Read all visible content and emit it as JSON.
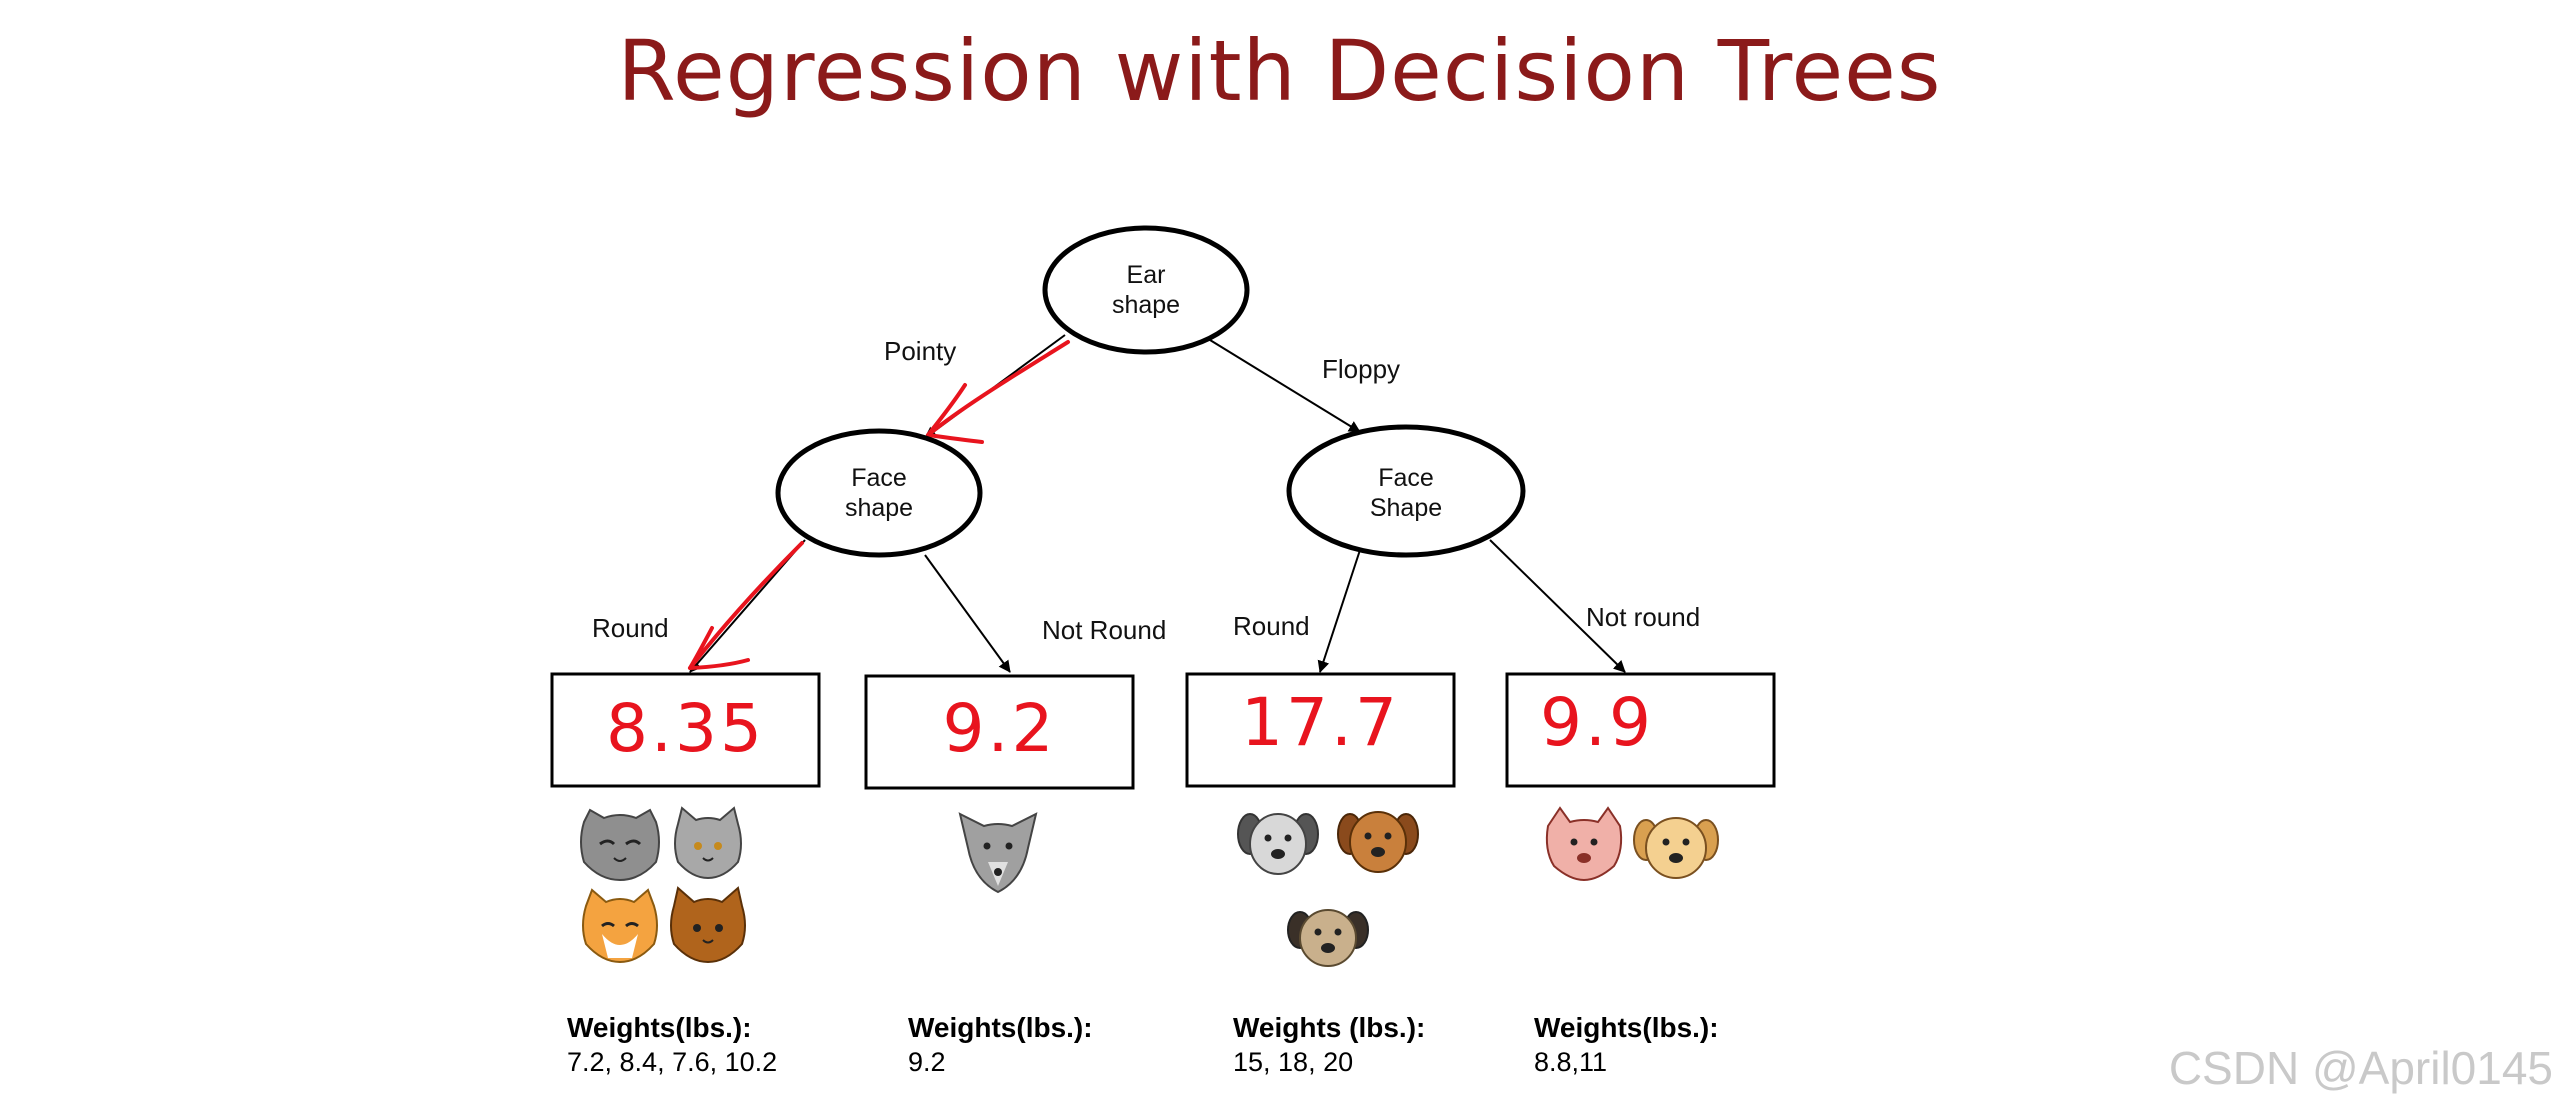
{
  "title": "Regression with Decision Trees",
  "root": {
    "label_line1": "Ear",
    "label_line2": "shape"
  },
  "left_node": {
    "label_line1": "Face",
    "label_line2": "shape"
  },
  "right_node": {
    "label_line1": "Face",
    "label_line2": "Shape"
  },
  "edges": {
    "pointy": "Pointy",
    "floppy": "Floppy",
    "round_left": "Round",
    "not_round_left": "Not Round",
    "round_right": "Round",
    "not_round_right": "Not round"
  },
  "leaves": [
    {
      "value": "8.35",
      "weights_title": "Weights(lbs.):",
      "weights_values": "7.2, 8.4, 7.6, 10.2",
      "animals": [
        "gray-cat",
        "gray-cat",
        "orange-cat",
        "brown-cat"
      ]
    },
    {
      "value": "9.2",
      "weights_title": "Weights(lbs.):",
      "weights_values": "9.2",
      "animals": [
        "gray-dog"
      ]
    },
    {
      "value": "17.7",
      "weights_title": "Weights (lbs.):",
      "weights_values": "15,  18, 20",
      "animals": [
        "gray-dog",
        "brown-dog",
        "tan-dog"
      ]
    },
    {
      "value": "9.9",
      "weights_title": "Weights(lbs.):",
      "weights_values": "8.8,11",
      "animals": [
        "pink-dog",
        "tan-dog"
      ]
    }
  ],
  "colors": {
    "title": "#8b1a1a",
    "annotation_red": "#e8141e",
    "line": "#000000"
  },
  "watermark": "CSDN @April0145"
}
